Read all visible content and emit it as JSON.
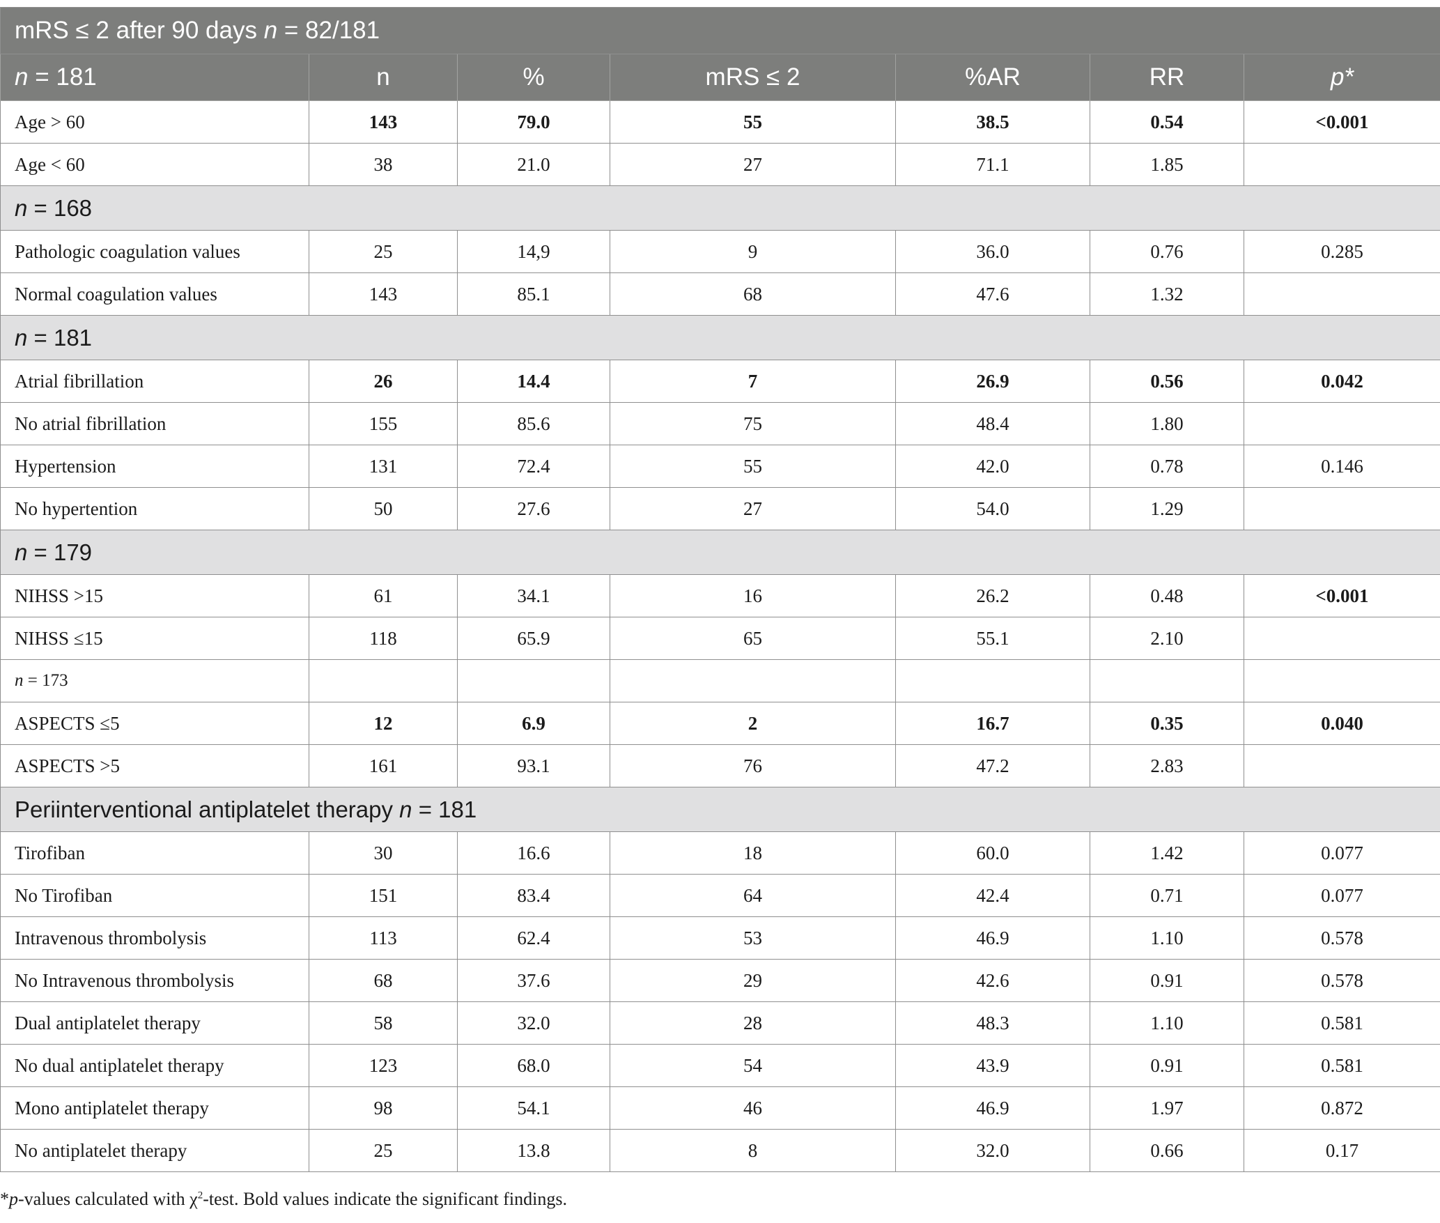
{
  "title": {
    "before": "mRS ≤ 2 after 90 days ",
    "n": "n",
    "after": " = 82/181"
  },
  "columns": {
    "first_n": "n",
    "first_rest": " = 181",
    "n": "n",
    "pct": "%",
    "mrs": "mRS ≤ 2",
    "ar": "%AR",
    "rr": "RR",
    "p": "p*"
  },
  "groups": {
    "g168": {
      "n": "n",
      "rest": " = 168"
    },
    "g181": {
      "n": "n",
      "rest": " = 181"
    },
    "g179": {
      "n": "n",
      "rest": " = 179"
    },
    "g173": {
      "n": "n",
      "rest": " = 173"
    },
    "gperi": {
      "text": "Periinterventional antiplatelet therapy ",
      "n": "n",
      "rest": " = 181"
    }
  },
  "rows": {
    "age_gt60": {
      "label": "Age > 60",
      "n": "143",
      "pct": "79.0",
      "mrs": "55",
      "ar": "38.5",
      "rr": "0.54",
      "p": "<0.001"
    },
    "age_lt60": {
      "label": "Age < 60",
      "n": "38",
      "pct": "21.0",
      "mrs": "27",
      "ar": "71.1",
      "rr": "1.85",
      "p": ""
    },
    "path_coag": {
      "label": "Pathologic coagulation values",
      "n": "25",
      "pct": "14,9",
      "mrs": "9",
      "ar": "36.0",
      "rr": "0.76",
      "p": "0.285"
    },
    "norm_coag": {
      "label": "Normal coagulation values",
      "n": "143",
      "pct": "85.1",
      "mrs": "68",
      "ar": "47.6",
      "rr": "1.32",
      "p": ""
    },
    "afib": {
      "label": "Atrial fibrillation",
      "n": "26",
      "pct": "14.4",
      "mrs": "7",
      "ar": "26.9",
      "rr": "0.56",
      "p": "0.042"
    },
    "no_afib": {
      "label": "No atrial fibrillation",
      "n": "155",
      "pct": "85.6",
      "mrs": "75",
      "ar": "48.4",
      "rr": "1.80",
      "p": ""
    },
    "htn": {
      "label": "Hypertension",
      "n": "131",
      "pct": "72.4",
      "mrs": "55",
      "ar": "42.0",
      "rr": "0.78",
      "p": "0.146"
    },
    "no_htn": {
      "label": "No hypertention",
      "n": "50",
      "pct": "27.6",
      "mrs": "27",
      "ar": "54.0",
      "rr": "1.29",
      "p": ""
    },
    "nihss_gt15": {
      "label": "NIHSS >15",
      "n": "61",
      "pct": "34.1",
      "mrs": "16",
      "ar": "26.2",
      "rr": "0.48",
      "p": "<0.001"
    },
    "nihss_le15": {
      "label": "NIHSS ≤15",
      "n": "118",
      "pct": "65.9",
      "mrs": "65",
      "ar": "55.1",
      "rr": "2.10",
      "p": ""
    },
    "aspects_le5": {
      "label": "ASPECTS ≤5",
      "n": "12",
      "pct": "6.9",
      "mrs": "2",
      "ar": "16.7",
      "rr": "0.35",
      "p": "0.040"
    },
    "aspects_gt5": {
      "label": "ASPECTS >5",
      "n": "161",
      "pct": "93.1",
      "mrs": "76",
      "ar": "47.2",
      "rr": "2.83",
      "p": ""
    },
    "tirofiban": {
      "label": "Tirofiban",
      "n": "30",
      "pct": "16.6",
      "mrs": "18",
      "ar": "60.0",
      "rr": "1.42",
      "p": "0.077"
    },
    "no_tirofiban": {
      "label": "No Tirofiban",
      "n": "151",
      "pct": "83.4",
      "mrs": "64",
      "ar": "42.4",
      "rr": "0.71",
      "p": "0.077"
    },
    "ivt": {
      "label": "Intravenous thrombolysis",
      "n": "113",
      "pct": "62.4",
      "mrs": "53",
      "ar": "46.9",
      "rr": "1.10",
      "p": "0.578"
    },
    "no_ivt": {
      "label": "No Intravenous thrombolysis",
      "n": "68",
      "pct": "37.6",
      "mrs": "29",
      "ar": "42.6",
      "rr": "0.91",
      "p": "0.578"
    },
    "dapt": {
      "label": "Dual antiplatelet therapy",
      "n": "58",
      "pct": "32.0",
      "mrs": "28",
      "ar": "48.3",
      "rr": "1.10",
      "p": "0.581"
    },
    "no_dapt": {
      "label": "No dual antiplatelet therapy",
      "n": "123",
      "pct": "68.0",
      "mrs": "54",
      "ar": "43.9",
      "rr": "0.91",
      "p": "0.581"
    },
    "mono": {
      "label": "Mono antiplatelet therapy",
      "n": "98",
      "pct": "54.1",
      "mrs": "46",
      "ar": "46.9",
      "rr": "1.97",
      "p": "0.872"
    },
    "no_apt": {
      "label": "No antiplatelet therapy",
      "n": "25",
      "pct": "13.8",
      "mrs": "8",
      "ar": "32.0",
      "rr": "0.66",
      "p": "0.17"
    }
  },
  "footnote": {
    "star": "*",
    "p": "p",
    "part1": "-values calculated with χ",
    "sup": "2",
    "part2": "-test. Bold values indicate the significant findings."
  },
  "colors": {
    "header_bg": "#7d7e7c",
    "group_bg": "#e0e0e1",
    "border": "#8f8f8f"
  }
}
